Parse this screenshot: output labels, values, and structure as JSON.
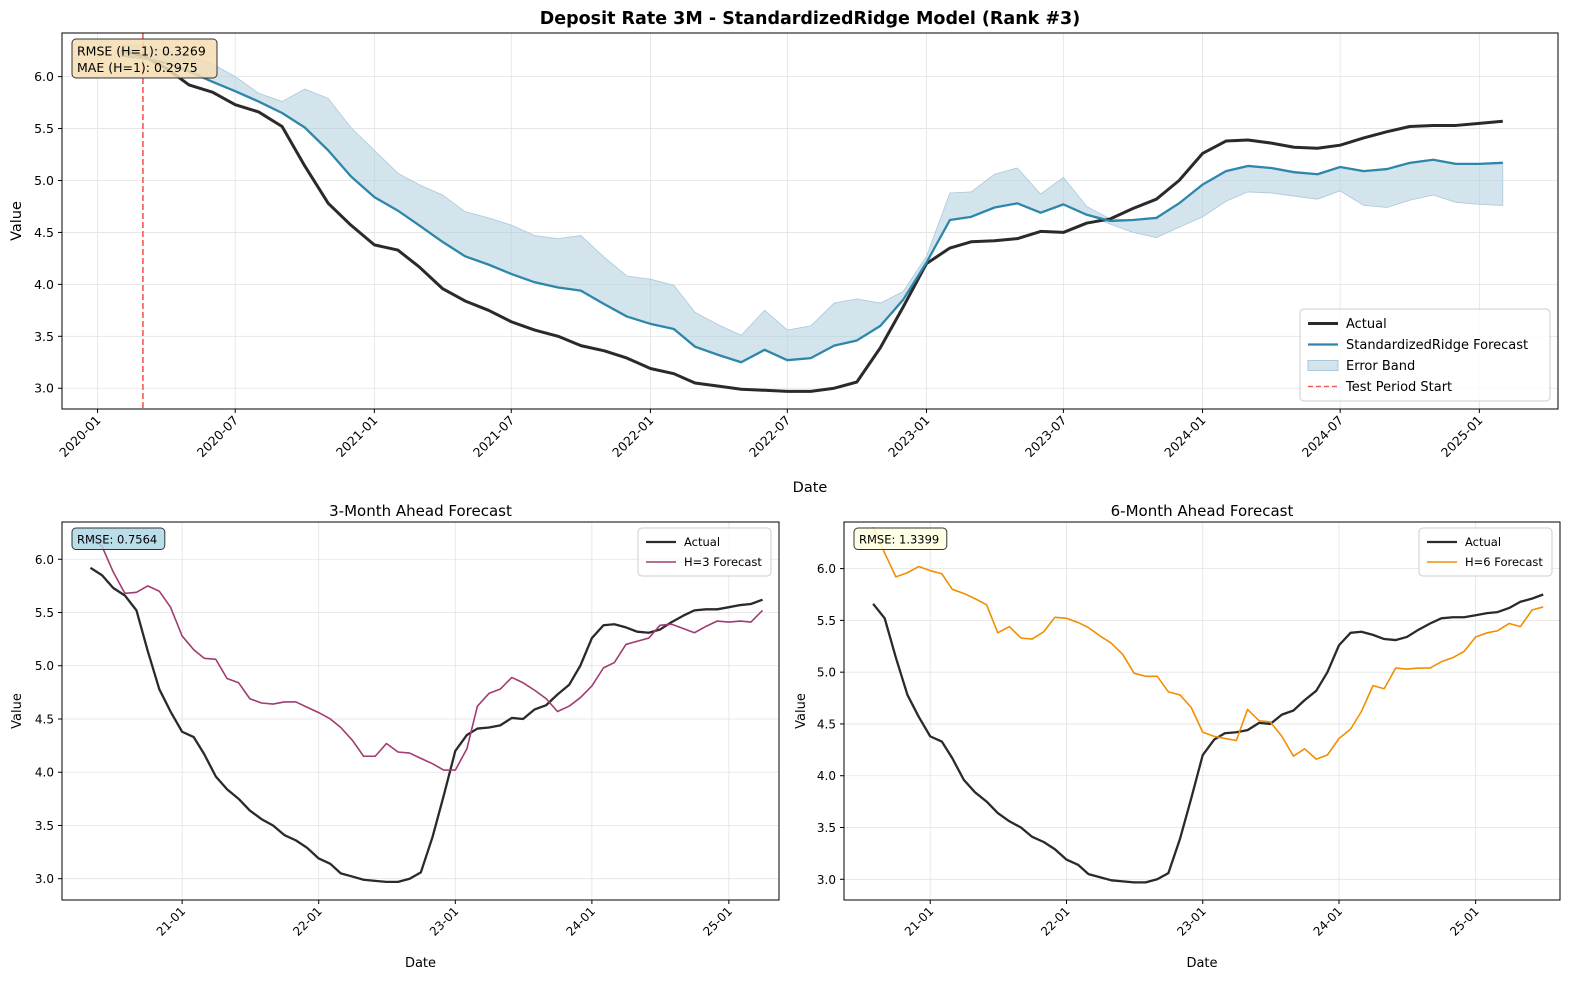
{
  "figure": {
    "suptitle": "Deposit Rate 3M - StandardizedRidge Model (Rank #3)"
  },
  "colors": {
    "actual": "#2a2a2a",
    "forecast_main": "#2e86ab",
    "band": "#a8c9dc",
    "test_start": "#f25c54",
    "h3": "#a23b72",
    "h6": "#f18f01",
    "box_main": "#f5deb3",
    "box_h3": "#add8e6",
    "box_h6": "#ffffe0",
    "grid": "#e3e3e3"
  },
  "chart_data": [
    {
      "type": "line",
      "title": "Deposit Rate 3M - StandardizedRidge Model (Rank #3)",
      "xlabel": "Date",
      "ylabel": "Value",
      "x_range": [
        "2019-11-15",
        "2025-04-15"
      ],
      "ylim": [
        2.8,
        6.42
      ],
      "yticks": [
        "3.0",
        "3.5",
        "4.0",
        "4.5",
        "5.0",
        "5.5",
        "6.0"
      ],
      "xticks": [
        "2020-01",
        "2020-07",
        "2021-01",
        "2021-07",
        "2022-01",
        "2022-07",
        "2023-01",
        "2023-07",
        "2024-01",
        "2024-07",
        "2025-01"
      ],
      "grid": true,
      "legend_position": "lower-right",
      "annotation": [
        "RMSE (H=1): 0.3269",
        "MAE (H=1): 0.2975"
      ],
      "vline": {
        "name": "Test Period Start",
        "x": "2020-03"
      },
      "dates": [
        "2020-02",
        "2020-03",
        "2020-04",
        "2020-05",
        "2020-06",
        "2020-07",
        "2020-08",
        "2020-09",
        "2020-10",
        "2020-11",
        "2020-12",
        "2021-01",
        "2021-02",
        "2021-03",
        "2021-04",
        "2021-05",
        "2021-06",
        "2021-07",
        "2021-08",
        "2021-09",
        "2021-10",
        "2021-11",
        "2021-12",
        "2022-01",
        "2022-02",
        "2022-03",
        "2022-04",
        "2022-05",
        "2022-06",
        "2022-07",
        "2022-08",
        "2022-09",
        "2022-10",
        "2022-11",
        "2022-12",
        "2023-01",
        "2023-02",
        "2023-03",
        "2023-04",
        "2023-05",
        "2023-06",
        "2023-07",
        "2023-08",
        "2023-09",
        "2023-10",
        "2023-11",
        "2023-12",
        "2024-01",
        "2024-02",
        "2024-03",
        "2024-04",
        "2024-05",
        "2024-06",
        "2024-07",
        "2024-08",
        "2024-09",
        "2024-10",
        "2024-11",
        "2024-12",
        "2025-01",
        "2025-02"
      ],
      "series": [
        {
          "name": "Actual",
          "values": [
            6.25,
            6.2,
            6.08,
            5.92,
            5.85,
            5.73,
            5.66,
            5.52,
            5.14,
            4.78,
            4.57,
            4.38,
            4.33,
            4.17,
            3.96,
            3.84,
            3.75,
            3.64,
            3.56,
            3.5,
            3.41,
            3.36,
            3.29,
            3.19,
            3.14,
            3.05,
            3.02,
            2.99,
            2.98,
            2.97,
            2.97,
            3.0,
            3.06,
            3.39,
            3.78,
            4.2,
            4.35,
            4.41,
            4.42,
            4.44,
            4.51,
            4.5,
            4.59,
            4.63,
            4.73,
            4.82,
            5.0,
            5.26,
            5.38,
            5.39,
            5.36,
            5.32,
            5.31,
            5.34,
            5.41,
            5.47,
            5.52,
            5.53,
            5.53,
            5.55,
            5.57
          ]
        },
        {
          "name": "StandardizedRidge Forecast",
          "values": [
            6.2,
            6.18,
            6.13,
            6.05,
            5.95,
            5.86,
            5.76,
            5.65,
            5.51,
            5.29,
            5.04,
            4.84,
            4.71,
            4.57,
            4.41,
            4.27,
            4.19,
            4.1,
            4.02,
            3.97,
            3.94,
            3.81,
            3.69,
            3.62,
            3.57,
            3.4,
            3.32,
            3.25,
            3.37,
            3.27,
            3.29,
            3.41,
            3.46,
            3.6,
            3.85,
            4.21,
            4.62,
            4.65,
            4.74,
            4.78,
            4.69,
            4.77,
            4.67,
            4.61,
            4.62,
            4.64,
            4.78,
            4.96,
            5.09,
            5.14,
            5.12,
            5.08,
            5.06,
            5.13,
            5.09,
            5.11,
            5.17,
            5.2,
            5.16,
            5.16,
            5.17
          ]
        },
        {
          "name": "Error Band",
          "upper": [
            6.3,
            6.3,
            6.25,
            6.2,
            6.12,
            6.0,
            5.84,
            5.76,
            5.88,
            5.79,
            5.51,
            5.29,
            5.07,
            4.96,
            4.86,
            4.7,
            4.64,
            4.57,
            4.47,
            4.44,
            4.47,
            4.26,
            4.08,
            4.05,
            3.99,
            3.73,
            3.61,
            3.51,
            3.75,
            3.56,
            3.6,
            3.82,
            3.86,
            3.82,
            3.93,
            4.27,
            4.88,
            4.89,
            5.06,
            5.12,
            4.87,
            5.03,
            4.75,
            4.63,
            4.62,
            4.63,
            4.78,
            4.96,
            5.09,
            5.14,
            5.12,
            5.08,
            5.06,
            5.13,
            5.09,
            5.11,
            5.17,
            5.2,
            5.16,
            5.16,
            5.17
          ],
          "lower": [
            6.2,
            6.18,
            6.13,
            6.05,
            5.95,
            5.86,
            5.76,
            5.65,
            5.51,
            5.29,
            5.04,
            4.84,
            4.71,
            4.57,
            4.41,
            4.27,
            4.19,
            4.1,
            4.02,
            3.97,
            3.94,
            3.81,
            3.69,
            3.62,
            3.57,
            3.4,
            3.32,
            3.25,
            3.37,
            3.27,
            3.29,
            3.41,
            3.46,
            3.6,
            3.85,
            4.21,
            4.62,
            4.65,
            4.74,
            4.78,
            4.69,
            4.77,
            4.67,
            4.58,
            4.5,
            4.45,
            4.55,
            4.65,
            4.8,
            4.89,
            4.88,
            4.85,
            4.82,
            4.9,
            4.76,
            4.74,
            4.81,
            4.86,
            4.79,
            4.77,
            4.76
          ]
        },
        {
          "name": "Test Period Start"
        }
      ]
    },
    {
      "type": "line",
      "title": "3-Month Ahead Forecast",
      "xlabel": "Date",
      "ylabel": "Value",
      "x_range": [
        "2020-02-15",
        "2025-05-15"
      ],
      "ylim": [
        2.8,
        6.35
      ],
      "yticks": [
        "3.0",
        "3.5",
        "4.0",
        "4.5",
        "5.0",
        "5.5",
        "6.0"
      ],
      "xticks": [
        "21-01",
        "22-01",
        "23-01",
        "24-01",
        "25-01"
      ],
      "grid": true,
      "legend_position": "top-right",
      "annotation": [
        "RMSE: 0.7564"
      ],
      "dates": [
        "2020-05",
        "2020-06",
        "2020-07",
        "2020-08",
        "2020-09",
        "2020-10",
        "2020-11",
        "2020-12",
        "2021-01",
        "2021-02",
        "2021-03",
        "2021-04",
        "2021-05",
        "2021-06",
        "2021-07",
        "2021-08",
        "2021-09",
        "2021-10",
        "2021-11",
        "2021-12",
        "2022-01",
        "2022-02",
        "2022-03",
        "2022-04",
        "2022-05",
        "2022-06",
        "2022-07",
        "2022-08",
        "2022-09",
        "2022-10",
        "2022-11",
        "2022-12",
        "2023-01",
        "2023-02",
        "2023-03",
        "2023-04",
        "2023-05",
        "2023-06",
        "2023-07",
        "2023-08",
        "2023-09",
        "2023-10",
        "2023-11",
        "2023-12",
        "2024-01",
        "2024-02",
        "2024-03",
        "2024-04",
        "2024-05",
        "2024-06",
        "2024-07",
        "2024-08",
        "2024-09",
        "2024-10",
        "2024-11",
        "2024-12",
        "2025-01",
        "2025-02",
        "2025-03",
        "2025-04"
      ],
      "series": [
        {
          "name": "Actual",
          "values": [
            5.92,
            5.85,
            5.73,
            5.66,
            5.52,
            5.14,
            4.78,
            4.57,
            4.38,
            4.33,
            4.17,
            3.96,
            3.84,
            3.75,
            3.64,
            3.56,
            3.5,
            3.41,
            3.36,
            3.29,
            3.19,
            3.14,
            3.05,
            3.02,
            2.99,
            2.98,
            2.97,
            2.97,
            3.0,
            3.06,
            3.39,
            3.78,
            4.2,
            4.35,
            4.41,
            4.42,
            4.44,
            4.51,
            4.5,
            4.59,
            4.63,
            4.73,
            4.82,
            5.0,
            5.26,
            5.38,
            5.39,
            5.36,
            5.32,
            5.31,
            5.34,
            5.41,
            5.47,
            5.52,
            5.53,
            5.53,
            5.55,
            5.57,
            5.58,
            5.62
          ]
        },
        {
          "name": "H=3 Forecast",
          "values": [
            6.22,
            6.12,
            5.88,
            5.68,
            5.69,
            5.75,
            5.7,
            5.55,
            5.28,
            5.15,
            5.07,
            5.06,
            4.88,
            4.84,
            4.69,
            4.65,
            4.64,
            4.66,
            4.66,
            4.61,
            4.56,
            4.5,
            4.42,
            4.3,
            4.15,
            4.15,
            4.27,
            4.19,
            4.18,
            4.13,
            4.08,
            4.02,
            4.02,
            4.22,
            4.62,
            4.74,
            4.78,
            4.89,
            4.84,
            4.77,
            4.69,
            4.57,
            4.62,
            4.7,
            4.81,
            4.98,
            5.03,
            5.2,
            5.23,
            5.26,
            5.38,
            5.39,
            5.35,
            5.31,
            5.37,
            5.42,
            5.41,
            5.42,
            5.41,
            5.52
          ]
        }
      ]
    },
    {
      "type": "line",
      "title": "6-Month Ahead Forecast",
      "xlabel": "Date",
      "ylabel": "Value",
      "x_range": [
        "2020-05-15",
        "2025-08-15"
      ],
      "ylim": [
        2.8,
        6.45
      ],
      "yticks": [
        "3.0",
        "3.5",
        "4.0",
        "4.5",
        "5.0",
        "5.5",
        "6.0"
      ],
      "xticks": [
        "21-01",
        "22-01",
        "23-01",
        "24-01",
        "25-01"
      ],
      "grid": true,
      "legend_position": "top-right",
      "annotation": [
        "RMSE: 1.3399"
      ],
      "dates": [
        "2020-08",
        "2020-09",
        "2020-10",
        "2020-11",
        "2020-12",
        "2021-01",
        "2021-02",
        "2021-03",
        "2021-04",
        "2021-05",
        "2021-06",
        "2021-07",
        "2021-08",
        "2021-09",
        "2021-10",
        "2021-11",
        "2021-12",
        "2022-01",
        "2022-02",
        "2022-03",
        "2022-04",
        "2022-05",
        "2022-06",
        "2022-07",
        "2022-08",
        "2022-09",
        "2022-10",
        "2022-11",
        "2022-12",
        "2023-01",
        "2023-02",
        "2023-03",
        "2023-04",
        "2023-05",
        "2023-06",
        "2023-07",
        "2023-08",
        "2023-09",
        "2023-10",
        "2023-11",
        "2023-12",
        "2024-01",
        "2024-02",
        "2024-03",
        "2024-04",
        "2024-05",
        "2024-06",
        "2024-07",
        "2024-08",
        "2024-09",
        "2024-10",
        "2024-11",
        "2024-12",
        "2025-01",
        "2025-02",
        "2025-03",
        "2025-04",
        "2025-05",
        "2025-06",
        "2025-07"
      ],
      "series": [
        {
          "name": "Actual",
          "values": [
            5.66,
            5.52,
            5.14,
            4.78,
            4.57,
            4.38,
            4.33,
            4.17,
            3.96,
            3.84,
            3.75,
            3.64,
            3.56,
            3.5,
            3.41,
            3.36,
            3.29,
            3.19,
            3.14,
            3.05,
            3.02,
            2.99,
            2.98,
            2.97,
            2.97,
            3.0,
            3.06,
            3.39,
            3.78,
            4.2,
            4.35,
            4.41,
            4.42,
            4.44,
            4.51,
            4.5,
            4.59,
            4.63,
            4.73,
            4.82,
            5.0,
            5.26,
            5.38,
            5.39,
            5.36,
            5.32,
            5.31,
            5.34,
            5.41,
            5.47,
            5.52,
            5.53,
            5.53,
            5.55,
            5.57,
            5.58,
            5.62,
            5.68,
            5.71,
            5.75
          ]
        },
        {
          "name": "H=6 Forecast",
          "values": [
            6.4,
            6.15,
            5.92,
            5.96,
            6.02,
            5.98,
            5.95,
            5.8,
            5.76,
            5.71,
            5.65,
            5.38,
            5.44,
            5.33,
            5.32,
            5.39,
            5.53,
            5.52,
            5.48,
            5.43,
            5.35,
            5.28,
            5.17,
            4.99,
            4.96,
            4.96,
            4.81,
            4.78,
            4.66,
            4.42,
            4.38,
            4.36,
            4.34,
            4.64,
            4.53,
            4.52,
            4.38,
            4.19,
            4.26,
            4.16,
            4.2,
            4.36,
            4.45,
            4.62,
            4.87,
            4.84,
            5.04,
            5.03,
            5.04,
            5.04,
            5.1,
            5.14,
            5.2,
            5.34,
            5.38,
            5.4,
            5.47,
            5.44,
            5.6,
            5.63
          ]
        }
      ]
    }
  ]
}
